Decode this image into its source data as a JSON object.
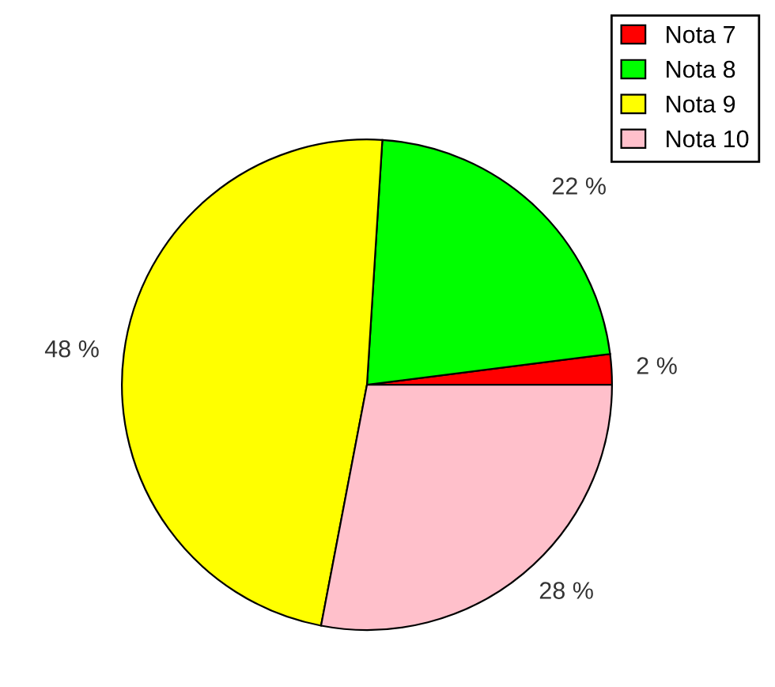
{
  "chart_data": {
    "type": "pie",
    "categories": [
      "Nota 7",
      "Nota 8",
      "Nota 9",
      "Nota 10"
    ],
    "values": [
      2,
      22,
      48,
      28
    ],
    "colors": [
      "#ff0000",
      "#00ff00",
      "#ffff00",
      "#ffc0cb"
    ],
    "value_labels": [
      "2 %",
      "22 %",
      "48 %",
      "28 %"
    ],
    "legend": "top right"
  }
}
